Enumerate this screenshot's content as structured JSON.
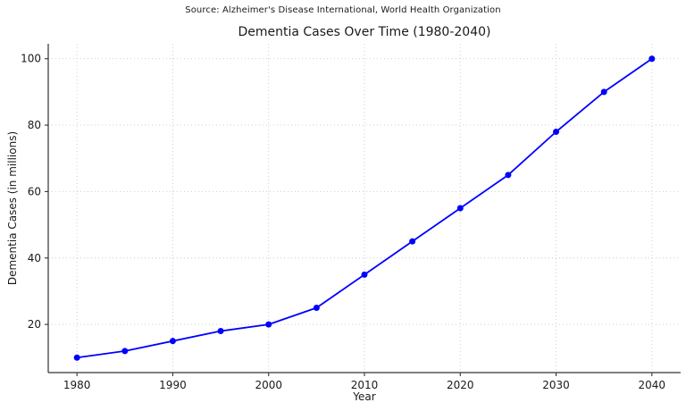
{
  "chart_data": {
    "type": "line",
    "title": "Dementia Cases Over Time (1980-2040)",
    "source": "Source: Alzheimer's Disease International, World Health Organization",
    "xlabel": "Year",
    "ylabel": "Dementia Cases (in millions)",
    "x": [
      1980,
      1985,
      1990,
      1995,
      2000,
      2005,
      2010,
      2015,
      2020,
      2025,
      2030,
      2035,
      2040
    ],
    "series": [
      {
        "name": "Dementia Cases",
        "values": [
          10,
          12,
          15,
          18,
          20,
          25,
          35,
          45,
          55,
          65,
          78,
          90,
          100
        ]
      }
    ],
    "xticks": [
      1980,
      1990,
      2000,
      2010,
      2020,
      2030,
      2040
    ],
    "yticks": [
      20,
      40,
      60,
      80,
      100
    ],
    "xlim": [
      1977,
      2043
    ],
    "ylim": [
      5.5,
      104.5
    ],
    "grid": true,
    "grid_style": "dotted",
    "legend_position": "none",
    "line_color": "#0000ff",
    "marker": "circle",
    "grid_color": "#c9c9c9",
    "spine_color": "#333333",
    "text_color": "#1a1a1a"
  }
}
